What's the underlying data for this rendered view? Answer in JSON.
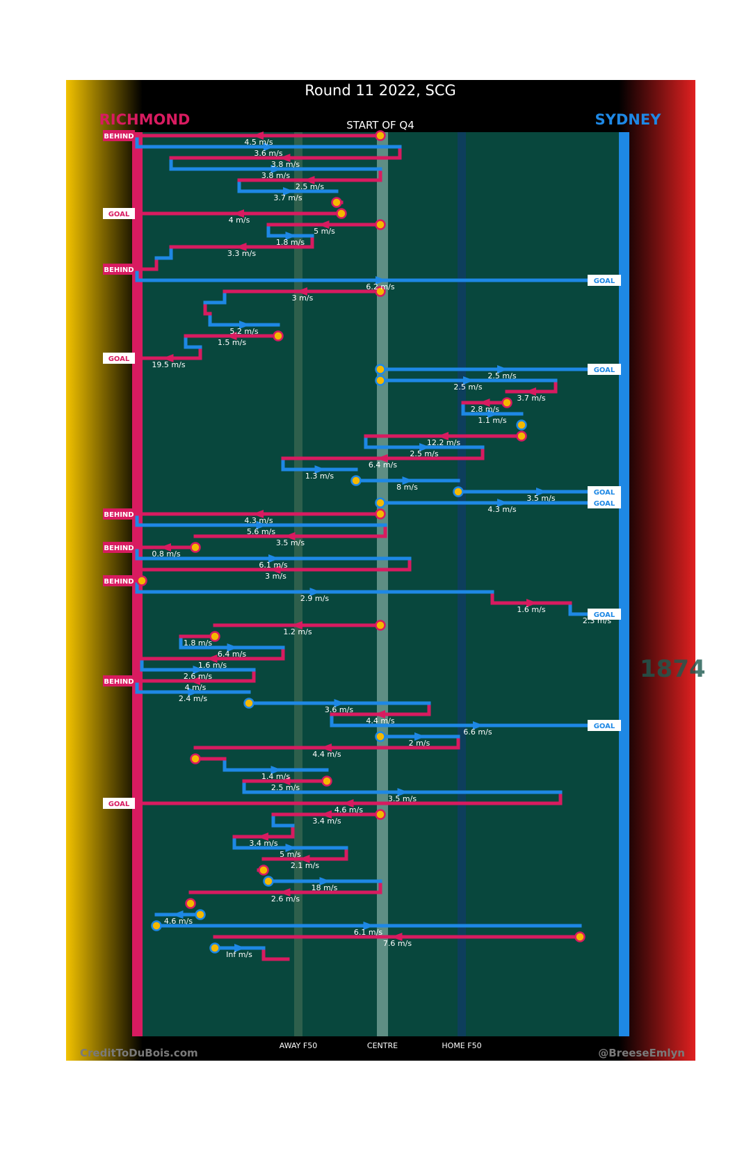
{
  "chart_data": {
    "type": "line",
    "title": "Round 11 2022, SCG",
    "subtitle": "START OF Q4",
    "team_left": "RICHMOND",
    "team_right": "SYDNEY",
    "xlabels": [
      "AWAY F50",
      "CENTRE",
      "HOME F50"
    ],
    "x_range": [
      0,
      100
    ],
    "credit_left": "CreditToDuBois.com",
    "credit_right": "@BreeseEmlyn",
    "colors": {
      "richmond": "#d81b60",
      "sydney": "#1e88e5",
      "field": "#08473d",
      "stoppage": "#f5b800"
    },
    "watermark": "1874",
    "result_markers": [
      {
        "team": "RICH",
        "label": "BEHIND",
        "row": 0
      },
      {
        "team": "RICH",
        "label": "GOAL",
        "row": 7
      },
      {
        "team": "RICH",
        "label": "BEHIND",
        "row": 12
      },
      {
        "team": "SYD",
        "label": "GOAL",
        "row": 13
      },
      {
        "team": "RICH",
        "label": "GOAL",
        "row": 20
      },
      {
        "team": "SYD",
        "label": "GOAL",
        "row": 21
      },
      {
        "team": "SYD",
        "label": "GOAL",
        "row": 32
      },
      {
        "team": "SYD",
        "label": "GOAL",
        "row": 33
      },
      {
        "team": "RICH",
        "label": "BEHIND",
        "row": 34
      },
      {
        "team": "RICH",
        "label": "BEHIND",
        "row": 37
      },
      {
        "team": "RICH",
        "label": "BEHIND",
        "row": 40
      },
      {
        "team": "SYD",
        "label": "GOAL",
        "row": 43
      },
      {
        "team": "RICH",
        "label": "BEHIND",
        "row": 49
      },
      {
        "team": "SYD",
        "label": "GOAL",
        "row": 53
      },
      {
        "team": "RICH",
        "label": "GOAL",
        "row": 60
      }
    ],
    "segments": [
      {
        "team": "RICH",
        "row": 0,
        "x1": 50,
        "x2": 0,
        "label": "4.5 m/s",
        "start": "stoppage"
      },
      {
        "team": "SYD",
        "row": 1,
        "x1": 0,
        "x2": 54,
        "label": "3.6 m/s"
      },
      {
        "team": "RICH",
        "row": 2,
        "x1": 54,
        "x2": 7,
        "label": "3.8 m/s"
      },
      {
        "team": "SYD",
        "row": 3,
        "x1": 7,
        "x2": 50,
        "label": "3.8 m/s"
      },
      {
        "team": "RICH",
        "row": 4,
        "x1": 50,
        "x2": 21,
        "label": "2.5 m/s"
      },
      {
        "team": "SYD",
        "row": 5,
        "x1": 21,
        "x2": 41,
        "label": "3.7 m/s"
      },
      {
        "team": "RICH",
        "row": 6,
        "x1": 41,
        "x2": 42,
        "label": "",
        "start": "stoppage"
      },
      {
        "team": "RICH",
        "row": 7,
        "x1": 42,
        "x2": 0,
        "label": "4 m/s",
        "start": "stoppage"
      },
      {
        "team": "RICH",
        "row": 8,
        "x1": 50,
        "x2": 27,
        "label": "5 m/s",
        "start": "stoppage"
      },
      {
        "team": "SYD",
        "row": 9,
        "x1": 27,
        "x2": 36,
        "label": "1.8 m/s"
      },
      {
        "team": "RICH",
        "row": 10,
        "x1": 36,
        "x2": 7,
        "label": "3.3 m/s"
      },
      {
        "team": "SYD",
        "row": 11,
        "x1": 7,
        "x2": 4,
        "label": ""
      },
      {
        "team": "RICH",
        "row": 12,
        "x1": 4,
        "x2": 0,
        "label": ""
      },
      {
        "team": "SYD",
        "row": 13,
        "x1": 0,
        "x2": 100,
        "label": "6.2 m/s"
      },
      {
        "team": "RICH",
        "row": 14,
        "x1": 50,
        "x2": 18,
        "label": "3 m/s",
        "start": "stoppage"
      },
      {
        "team": "SYD",
        "row": 15,
        "x1": 18,
        "x2": 14,
        "label": ""
      },
      {
        "team": "RICH",
        "row": 16,
        "x1": 14,
        "x2": 15,
        "label": ""
      },
      {
        "team": "SYD",
        "row": 17,
        "x1": 15,
        "x2": 29,
        "label": "5.2 m/s"
      },
      {
        "team": "RICH",
        "row": 18,
        "x1": 29,
        "x2": 10,
        "label": "1.5 m/s",
        "start": "stoppage"
      },
      {
        "team": "SYD",
        "row": 19,
        "x1": 10,
        "x2": 13,
        "label": ""
      },
      {
        "team": "RICH",
        "row": 20,
        "x1": 13,
        "x2": 0,
        "label": "19.5 m/s"
      },
      {
        "team": "SYD",
        "row": 21,
        "x1": 50,
        "x2": 100,
        "label": "2.5 m/s",
        "start": "stoppage"
      },
      {
        "team": "SYD",
        "row": 22,
        "x1": 50,
        "x2": 86,
        "label": "2.5 m/s",
        "start": "stoppage"
      },
      {
        "team": "RICH",
        "row": 23,
        "x1": 86,
        "x2": 76,
        "label": "3.7 m/s"
      },
      {
        "team": "RICH",
        "row": 24,
        "x1": 76,
        "x2": 67,
        "label": "2.8 m/s",
        "start": "stoppage"
      },
      {
        "team": "SYD",
        "row": 25,
        "x1": 67,
        "x2": 79,
        "label": "1.1 m/s"
      },
      {
        "team": "SYD",
        "row": 26,
        "x1": 79,
        "x2": 79,
        "label": "",
        "start": "stoppage"
      },
      {
        "team": "RICH",
        "row": 27,
        "x1": 79,
        "x2": 47,
        "label": "12.2 m/s",
        "start": "stoppage"
      },
      {
        "team": "SYD",
        "row": 28,
        "x1": 47,
        "x2": 71,
        "label": "2.5 m/s"
      },
      {
        "team": "RICH",
        "row": 29,
        "x1": 71,
        "x2": 30,
        "label": "6.4 m/s"
      },
      {
        "team": "SYD",
        "row": 30,
        "x1": 30,
        "x2": 45,
        "label": "1.3 m/s"
      },
      {
        "team": "SYD",
        "row": 31,
        "x1": 45,
        "x2": 66,
        "label": "8 m/s",
        "start": "stoppage"
      },
      {
        "team": "SYD",
        "row": 32,
        "x1": 66,
        "x2": 100,
        "label": "3.5 m/s",
        "start": "stoppage"
      },
      {
        "team": "SYD",
        "row": 33,
        "x1": 50,
        "x2": 100,
        "label": "4.3 m/s",
        "start": "stoppage"
      },
      {
        "team": "RICH",
        "row": 34,
        "x1": 50,
        "x2": 0,
        "label": "4.3 m/s",
        "start": "stoppage"
      },
      {
        "team": "SYD",
        "row": 35,
        "x1": 0,
        "x2": 51,
        "label": "5.6 m/s"
      },
      {
        "team": "RICH",
        "row": 36,
        "x1": 51,
        "x2": 12,
        "label": "3.5 m/s"
      },
      {
        "team": "RICH",
        "row": 37,
        "x1": 12,
        "x2": 0,
        "label": "0.8 m/s",
        "start": "stoppage"
      },
      {
        "team": "SYD",
        "row": 38,
        "x1": 0,
        "x2": 56,
        "label": "6.1 m/s"
      },
      {
        "team": "RICH",
        "row": 39,
        "x1": 56,
        "x2": 1,
        "label": "3 m/s"
      },
      {
        "team": "RICH",
        "row": 40,
        "x1": 1,
        "x2": 0,
        "label": "",
        "start": "stoppage"
      },
      {
        "team": "SYD",
        "row": 41,
        "x1": 0,
        "x2": 73,
        "label": "2.9 m/s"
      },
      {
        "team": "RICH",
        "row": 42,
        "x1": 73,
        "x2": 89,
        "label": "1.6 m/s"
      },
      {
        "team": "SYD",
        "row": 43,
        "x1": 89,
        "x2": 100,
        "label": "2.3 m/s"
      },
      {
        "team": "RICH",
        "row": 44,
        "x1": 50,
        "x2": 16,
        "label": "1.2 m/s",
        "start": "stoppage"
      },
      {
        "team": "RICH",
        "row": 45,
        "x1": 16,
        "x2": 9,
        "label": "1.8 m/s",
        "start": "stoppage"
      },
      {
        "team": "SYD",
        "row": 46,
        "x1": 9,
        "x2": 30,
        "label": "6.4 m/s"
      },
      {
        "team": "RICH",
        "row": 47,
        "x1": 30,
        "x2": 1,
        "label": "1.6 m/s"
      },
      {
        "team": "SYD",
        "row": 48,
        "x1": 1,
        "x2": 24,
        "label": "2.6 m/s"
      },
      {
        "team": "RICH",
        "row": 49,
        "x1": 24,
        "x2": 0,
        "label": "4 m/s"
      },
      {
        "team": "SYD",
        "row": 50,
        "x1": 0,
        "x2": 23,
        "label": "2.4 m/s"
      },
      {
        "team": "SYD",
        "row": 51,
        "x1": 23,
        "x2": 60,
        "label": "3.6 m/s",
        "start": "stoppage"
      },
      {
        "team": "RICH",
        "row": 52,
        "x1": 60,
        "x2": 40,
        "label": "4.4 m/s"
      },
      {
        "team": "SYD",
        "row": 53,
        "x1": 40,
        "x2": 100,
        "label": "6.6 m/s"
      },
      {
        "team": "SYD",
        "row": 54,
        "x1": 50,
        "x2": 66,
        "label": "2 m/s",
        "start": "stoppage"
      },
      {
        "team": "RICH",
        "row": 55,
        "x1": 66,
        "x2": 12,
        "label": "4.4 m/s"
      },
      {
        "team": "RICH",
        "row": 56,
        "x1": 12,
        "x2": 18,
        "label": "",
        "start": "stoppage"
      },
      {
        "team": "SYD",
        "row": 57,
        "x1": 18,
        "x2": 39,
        "label": "1.4 m/s"
      },
      {
        "team": "RICH",
        "row": 58,
        "x1": 39,
        "x2": 22,
        "label": "2.5 m/s",
        "start": "stoppage"
      },
      {
        "team": "SYD",
        "row": 59,
        "x1": 22,
        "x2": 87,
        "label": "3.5 m/s"
      },
      {
        "team": "RICH",
        "row": 60,
        "x1": 87,
        "x2": 0,
        "label": "4.6 m/s"
      },
      {
        "team": "RICH",
        "row": 61,
        "x1": 50,
        "x2": 28,
        "label": "3.4 m/s",
        "start": "stoppage"
      },
      {
        "team": "SYD",
        "row": 62,
        "x1": 28,
        "x2": 32,
        "label": ""
      },
      {
        "team": "RICH",
        "row": 63,
        "x1": 32,
        "x2": 20,
        "label": "3.4 m/s"
      },
      {
        "team": "SYD",
        "row": 64,
        "x1": 20,
        "x2": 43,
        "label": "5 m/s"
      },
      {
        "team": "RICH",
        "row": 65,
        "x1": 43,
        "x2": 26,
        "label": "2.1 m/s"
      },
      {
        "team": "RICH",
        "row": 66,
        "x1": 26,
        "x2": 25,
        "label": "",
        "start": "stoppage"
      },
      {
        "team": "SYD",
        "row": 67,
        "x1": 27,
        "x2": 50,
        "label": "18 m/s",
        "start": "stoppage"
      },
      {
        "team": "RICH",
        "row": 68,
        "x1": 50,
        "x2": 11,
        "label": "2.6 m/s"
      },
      {
        "team": "RICH",
        "row": 69,
        "x1": 11,
        "x2": 11,
        "label": "",
        "start": "stoppage"
      },
      {
        "team": "SYD",
        "row": 70,
        "x1": 13,
        "x2": 4,
        "label": "4.6 m/s",
        "start": "stoppage"
      },
      {
        "team": "SYD",
        "row": 71,
        "x1": 4,
        "x2": 91,
        "label": "6.1 m/s",
        "start": "stoppage"
      },
      {
        "team": "RICH",
        "row": 72,
        "x1": 91,
        "x2": 16,
        "label": "7.6 m/s",
        "start": "stoppage"
      },
      {
        "team": "SYD",
        "row": 73,
        "x1": 16,
        "x2": 26,
        "label": "Inf m/s",
        "start": "stoppage"
      },
      {
        "team": "RICH",
        "row": 74,
        "x1": 26,
        "x2": 31,
        "label": ""
      }
    ]
  }
}
